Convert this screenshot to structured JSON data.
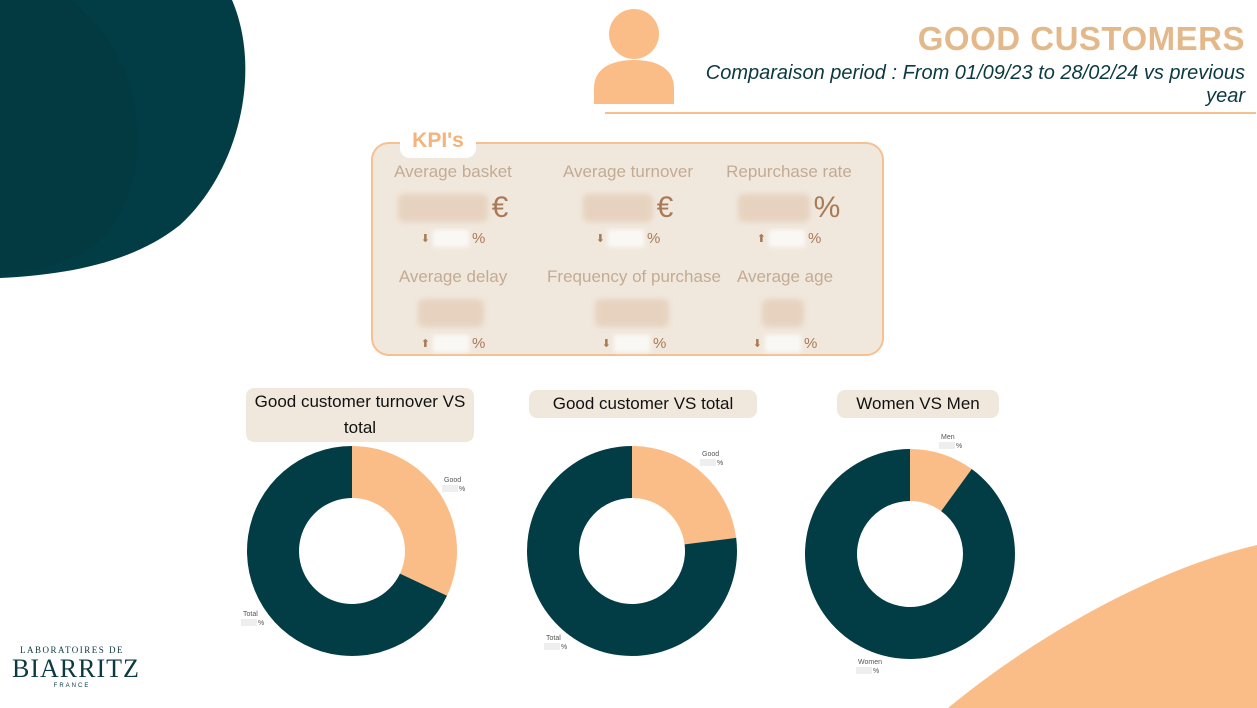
{
  "header": {
    "title": "GOOD CUSTOMERS",
    "subtitle": "Comparaison period : From 01/09/23 to 28/02/24 vs previous year"
  },
  "colors": {
    "dark_green": "#023d45",
    "peach": "#fbbd87",
    "beige": "#f1e8dd"
  },
  "icons": {
    "user": "user-icon"
  },
  "kpi_section": {
    "tag": "KPI's",
    "items": [
      {
        "label": "Average basket",
        "unit": "€",
        "variation_unit": "%",
        "trend": "down"
      },
      {
        "label": "Average turnover",
        "unit": "€",
        "variation_unit": "%",
        "trend": "down"
      },
      {
        "label": "Repurchase rate",
        "unit": "%",
        "variation_unit": "%",
        "trend": "up"
      },
      {
        "label": "Average delay",
        "unit": "",
        "variation_unit": "%",
        "trend": "up"
      },
      {
        "label": "Frequency of purchase",
        "unit": "",
        "variation_unit": "%",
        "trend": "down"
      },
      {
        "label": "Average age",
        "unit": "",
        "variation_unit": "%",
        "trend": "down"
      }
    ]
  },
  "chart_data": [
    {
      "type": "pie",
      "title": "Good customer turnover VS total",
      "donut": true,
      "categories": [
        "Good",
        "Total"
      ],
      "values": [
        0.32,
        0.68
      ],
      "value_suffix": "%",
      "colors": [
        "#fbbd87",
        "#023d45"
      ]
    },
    {
      "type": "pie",
      "title": "Good customer VS total",
      "donut": true,
      "categories": [
        "Good",
        "Total"
      ],
      "values": [
        0.23,
        0.77
      ],
      "value_suffix": "%",
      "colors": [
        "#fbbd87",
        "#023d45"
      ]
    },
    {
      "type": "pie",
      "title": "Women VS Men",
      "donut": true,
      "categories": [
        "Men",
        "Women"
      ],
      "values": [
        0.1,
        0.9
      ],
      "value_suffix": "%",
      "colors": [
        "#fbbd87",
        "#023d45"
      ]
    }
  ],
  "logo": {
    "line1": "LABORATOIRES DE",
    "line2": "BIARRITZ",
    "line3": "FRANCE"
  }
}
